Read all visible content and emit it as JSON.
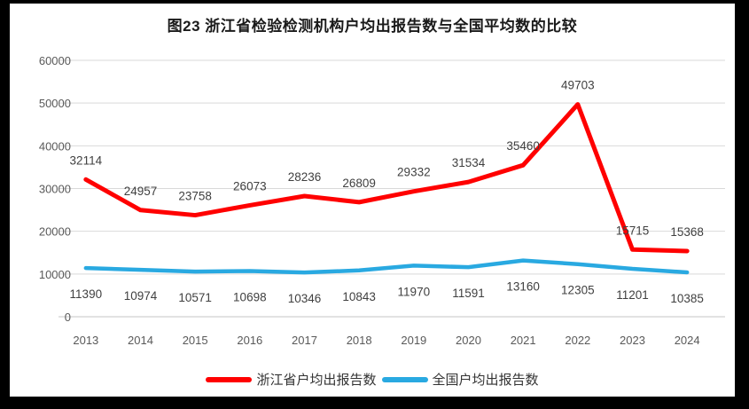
{
  "title": "图23  浙江省检验检测机构户均出报告数与全国平均数的比较",
  "chart_data": {
    "type": "line",
    "title": "图23  浙江省检验检测机构户均出报告数与全国平均数的比较",
    "categories": [
      "2013",
      "2014",
      "2015",
      "2016",
      "2017",
      "2018",
      "2019",
      "2020",
      "2021",
      "2022",
      "2023",
      "2024"
    ],
    "series": [
      {
        "name": "浙江省户均出报告数",
        "color": "#FF0000",
        "values": [
          32114,
          24957,
          23758,
          26073,
          28236,
          26809,
          29332,
          31534,
          35460,
          49703,
          15715,
          15368
        ],
        "label_position": "above"
      },
      {
        "name": "全国户均出报告数",
        "color": "#29A9E1",
        "values": [
          11390,
          10974,
          10571,
          10698,
          10346,
          10843,
          11970,
          11591,
          13160,
          12305,
          11201,
          10385
        ],
        "label_position": "below"
      }
    ],
    "ylim": [
      0,
      60000
    ],
    "y_ticks": [
      0,
      10000,
      20000,
      30000,
      40000,
      50000,
      60000
    ],
    "grid": true,
    "legend_position": "bottom",
    "colors": {
      "gridline": "#D9D9D9",
      "axis_line": "#C6C6C6",
      "tick_label": "#595959",
      "data_label": "#404040"
    }
  },
  "legend": {
    "items": [
      {
        "label": "浙江省户均出报告数",
        "color": "#FF0000"
      },
      {
        "label": "全国户均出报告数",
        "color": "#29A9E1"
      }
    ]
  }
}
